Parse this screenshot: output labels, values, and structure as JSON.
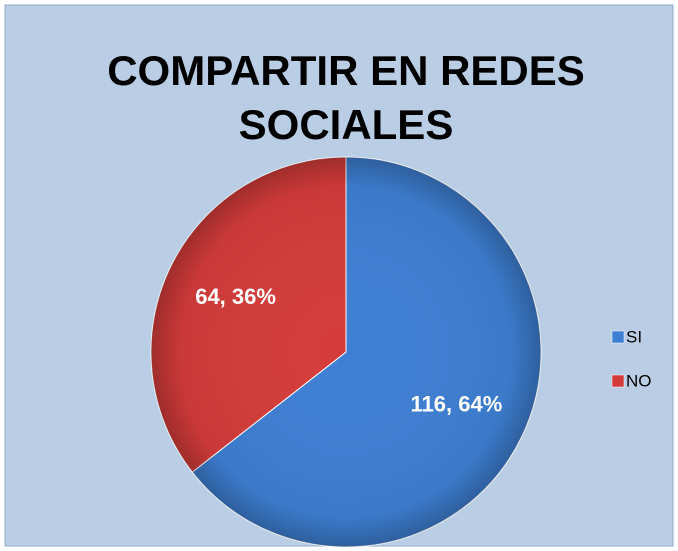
{
  "chart_data": {
    "type": "pie",
    "title": "COMPARTIR EN REDES SOCIALES",
    "categories": [
      "SI",
      "NO"
    ],
    "values": [
      116,
      64
    ],
    "value_labels": [
      "116, 64%",
      "64, 36%"
    ],
    "colors": [
      "#3e7fd3",
      "#d43c3a"
    ],
    "legend": "right"
  }
}
